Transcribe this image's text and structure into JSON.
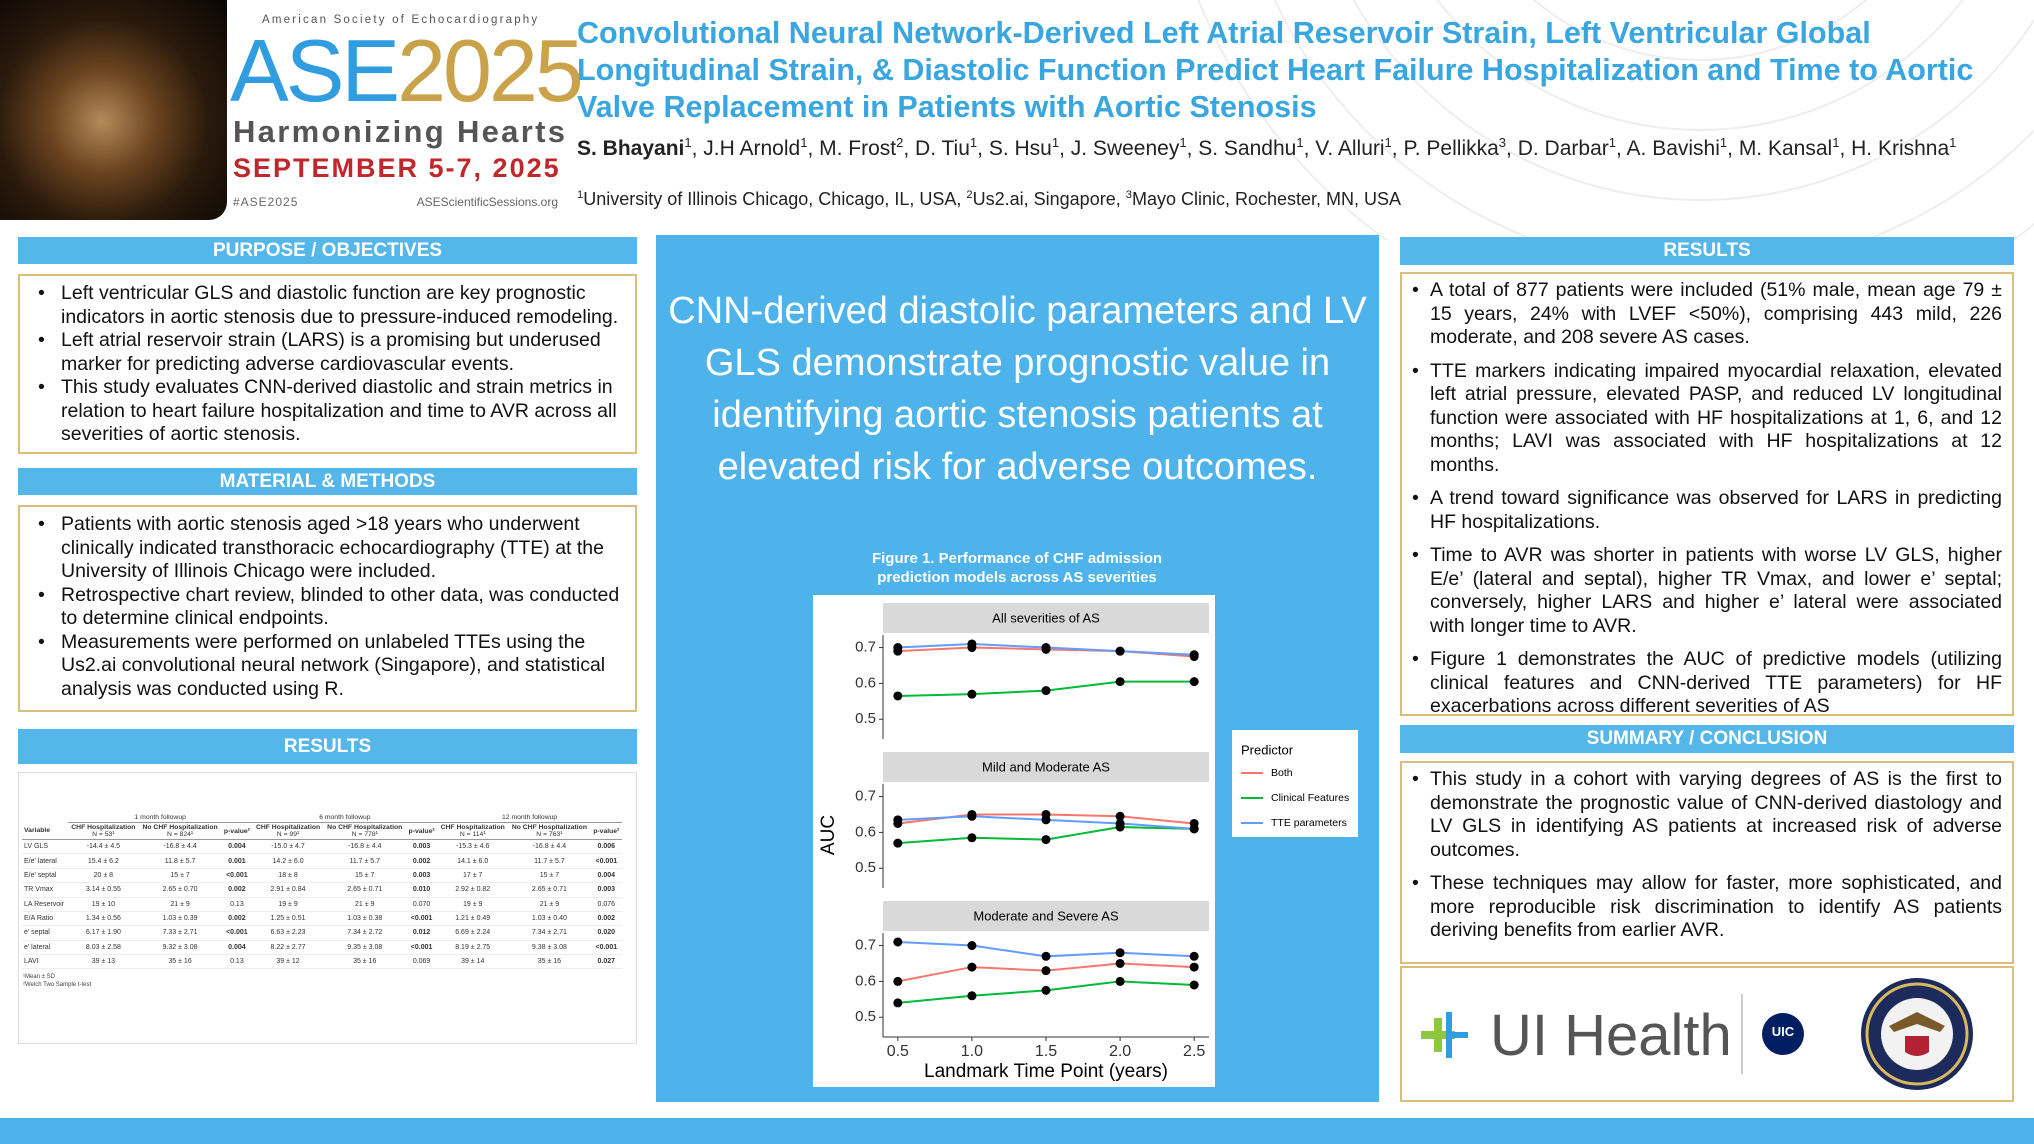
{
  "header": {
    "society": "American Society of Echocardiography",
    "logo_ase": "ASE",
    "logo_year": "2025",
    "tagline": "Harmonizing Hearts",
    "dates": "SEPTEMBER 5-7, 2025",
    "hashtag": "#ASE2025",
    "website": "ASEScientificSessions.org",
    "title": "Convolutional Neural Network-Derived Left Atrial Reservoir Strain, Left Ventricular Global Longitudinal Strain, & Diastolic Function Predict Heart Failure Hospitalization and Time to Aortic Valve Replacement in Patients with Aortic Stenosis",
    "authors": [
      {
        "name": "S. Bhayani",
        "sup": "1"
      },
      {
        "name": "J.H Arnold",
        "sup": "1"
      },
      {
        "name": "M. Frost",
        "sup": "2"
      },
      {
        "name": "D. Tiu",
        "sup": "1"
      },
      {
        "name": "S. Hsu",
        "sup": "1"
      },
      {
        "name": "J. Sweeney",
        "sup": "1"
      },
      {
        "name": "S. Sandhu",
        "sup": "1"
      },
      {
        "name": "V. Alluri",
        "sup": "1"
      },
      {
        "name": "P. Pellikka",
        "sup": "3"
      },
      {
        "name": "D. Darbar",
        "sup": "1"
      },
      {
        "name": "A. Bavishi",
        "sup": "1"
      },
      {
        "name": "M. Kansal",
        "sup": "1"
      },
      {
        "name": "H. Krishna",
        "sup": "1"
      }
    ],
    "affiliations": [
      {
        "sup": "1",
        "text": "University of Illinois Chicago, Chicago, IL, USA"
      },
      {
        "sup": "2",
        "text": "Us2.ai, Singapore"
      },
      {
        "sup": "3",
        "text": "Mayo Clinic, Rochester, MN, USA"
      }
    ]
  },
  "purpose": {
    "heading": "PURPOSE / OBJECTIVES",
    "bullets": [
      "Left ventricular GLS and diastolic function are key prognostic indicators in aortic stenosis due to pressure-induced remodeling.",
      "Left atrial reservoir strain (LARS) is a promising but underused marker for predicting adverse cardiovascular events.",
      "This study evaluates CNN-derived diastolic and strain metrics in relation to heart failure hospitalization and time to AVR across all severities of aortic stenosis."
    ]
  },
  "methods": {
    "heading": "MATERIAL & METHODS",
    "bullets": [
      "Patients with aortic stenosis aged >18 years who underwent clinically indicated transthoracic echocardiography (TTE) at the University of Illinois Chicago were included.",
      "Retrospective chart review, blinded to other data, was conducted to determine clinical endpoints.",
      "Measurements were performed on unlabeled TTEs using the Us2.ai convolutional neural network (Singapore), and statistical analysis was conducted using R."
    ]
  },
  "results_table": {
    "heading": "RESULTS",
    "variable_header": "Variable",
    "groups": [
      {
        "name": "1 month followup",
        "columns": [
          {
            "label": "CHF Hospitalization",
            "n": "N = 53¹"
          },
          {
            "label": "No CHF Hospitalization",
            "n": "N = 824¹"
          },
          {
            "label": "p-value²"
          }
        ]
      },
      {
        "name": "6 month followup",
        "columns": [
          {
            "label": "CHF Hospitalization",
            "n": "N = 99¹"
          },
          {
            "label": "No CHF Hospitalization",
            "n": "N = 778¹"
          },
          {
            "label": "p-value²"
          }
        ]
      },
      {
        "name": "12 month followup",
        "columns": [
          {
            "label": "CHF Hospitalization",
            "n": "N = 114¹"
          },
          {
            "label": "No CHF Hospitalization",
            "n": "N = 763¹"
          },
          {
            "label": "p-value²"
          }
        ]
      }
    ],
    "rows": [
      {
        "variable": "LV GLS",
        "cells": [
          "-14.4 ± 4.5",
          "-16.8 ± 4.4",
          "0.004",
          "-15.0 ± 4.7",
          "-16.8 ± 4.4",
          "0.003",
          "-15.3 ± 4.6",
          "-16.8 ± 4.4",
          "0.006"
        ]
      },
      {
        "variable": "E/e' lateral",
        "cells": [
          "15.4 ± 6.2",
          "11.8 ± 5.7",
          "0.001",
          "14.2 ± 6.0",
          "11.7 ± 5.7",
          "0.002",
          "14.1 ± 6.0",
          "11.7 ± 5.7",
          "<0.001"
        ]
      },
      {
        "variable": "E/e' septal",
        "cells": [
          "20 ± 8",
          "15 ± 7",
          "<0.001",
          "18 ± 8",
          "15 ± 7",
          "0.003",
          "17 ± 7",
          "15 ± 7",
          "0.004"
        ]
      },
      {
        "variable": "TR Vmax",
        "cells": [
          "3.14 ± 0.55",
          "2.65 ± 0.70",
          "0.002",
          "2.91 ± 0.84",
          "2.65 ± 0.71",
          "0.010",
          "2.92 ± 0.82",
          "2.65 ± 0.71",
          "0.003"
        ]
      },
      {
        "variable": "LA Reservoir",
        "cells": [
          "19 ± 10",
          "21 ± 9",
          "0.13",
          "19 ± 9",
          "21 ± 9",
          "0.070",
          "19 ± 9",
          "21 ± 9",
          "0.076"
        ]
      },
      {
        "variable": "E/A Ratio",
        "cells": [
          "1.34 ± 0.56",
          "1.03 ± 0.39",
          "0.002",
          "1.25 ± 0.51",
          "1.03 ± 0.38",
          "<0.001",
          "1.21 ± 0.49",
          "1.03 ± 0.40",
          "0.002"
        ]
      },
      {
        "variable": "e' septal",
        "cells": [
          "6.17 ± 1.90",
          "7.33 ± 2.71",
          "<0.001",
          "6.63 ± 2.23",
          "7.34 ± 2.72",
          "0.012",
          "6.69 ± 2.24",
          "7.34 ± 2.71",
          "0.020"
        ]
      },
      {
        "variable": "e' lateral",
        "cells": [
          "8.03 ± 2.58",
          "9.32 ± 3.08",
          "0.004",
          "8.22 ± 2.77",
          "9.35 ± 3.08",
          "<0.001",
          "8.19 ± 2.75",
          "9.38 ± 3.08",
          "<0.001"
        ]
      },
      {
        "variable": "LAVI",
        "cells": [
          "39 ± 13",
          "35 ± 16",
          "0.13",
          "39 ± 12",
          "35 ± 16",
          "0.069",
          "39 ± 14",
          "35 ± 16",
          "0.027"
        ]
      }
    ],
    "footnotes": [
      "¹Mean ± SD",
      "²Welch Two Sample t-test"
    ]
  },
  "key_message": "CNN-derived diastolic parameters and LV GLS demonstrate prognostic value in identifying aortic stenosis patients at elevated risk for adverse outcomes.",
  "chart_data": {
    "type": "line",
    "title": "Figure 1. Performance of CHF admission prediction models across AS severities",
    "xlabel": "Landmark Time Point (years)",
    "ylabel": "AUC",
    "legend_title": "Predictor",
    "x": [
      0.5,
      1.0,
      1.5,
      2.0,
      2.5
    ],
    "xlim": [
      0.4,
      2.6
    ],
    "xticks": [
      0.5,
      {
        "value": 1.0,
        "label": "1.0"
      },
      1.5,
      {
        "value": 2.0,
        "label": "2.0"
      },
      2.5
    ],
    "series": [
      {
        "name": "Both",
        "color": "#f8766d"
      },
      {
        "name": "Clinical Features",
        "color": "#00ba38"
      },
      {
        "name": "TTE parameters",
        "color": "#619cff"
      }
    ],
    "panels": [
      {
        "title": "All severities of AS",
        "ylim": [
          0.445,
          0.735
        ],
        "yticks": [
          0.5,
          0.6,
          0.7
        ],
        "values": [
          [
            0.69,
            0.7,
            0.695,
            0.69,
            0.675
          ],
          [
            0.565,
            0.57,
            0.58,
            0.605,
            0.605
          ],
          [
            0.7,
            0.71,
            0.7,
            0.69,
            0.68
          ]
        ]
      },
      {
        "title": "Mild and Moderate AS",
        "ylim": [
          0.445,
          0.735
        ],
        "yticks": [
          0.5,
          0.6,
          0.7
        ],
        "values": [
          [
            0.625,
            0.65,
            0.65,
            0.645,
            0.625
          ],
          [
            0.57,
            0.585,
            0.58,
            0.615,
            0.61
          ],
          [
            0.635,
            0.645,
            0.635,
            0.625,
            0.61
          ]
        ]
      },
      {
        "title": "Moderate and Severe AS",
        "ylim": [
          0.445,
          0.735
        ],
        "yticks": [
          0.5,
          0.6,
          0.7
        ],
        "values": [
          [
            0.6,
            0.64,
            0.63,
            0.65,
            0.64
          ],
          [
            0.54,
            0.56,
            0.575,
            0.6,
            0.59
          ],
          [
            0.71,
            0.7,
            0.67,
            0.68,
            0.67
          ]
        ]
      }
    ]
  },
  "results": {
    "heading": "RESULTS",
    "bullets": [
      "A total of 877 patients were included (51% male, mean age 79 ± 15 years, 24% with LVEF <50%), comprising 443 mild, 226 moderate, and 208 severe AS cases.",
      "TTE markers indicating impaired myocardial relaxation, elevated left atrial pressure, elevated PASP, and reduced LV longitudinal function were associated with HF hospitalizations at 1, 6, and 12 months; LAVI was associated with HF hospitalizations at 12 months.",
      "A trend toward significance was observed for LARS in predicting HF hospitalizations.",
      "Time to AVR was shorter in patients with worse LV GLS, higher E/e’ (lateral and septal), higher TR Vmax, and lower e’ septal; conversely, higher LARS and higher e’ lateral were associated with longer time to AVR.",
      "Figure 1 demonstrates the AUC of predictive models (utilizing clinical features and CNN-derived TTE parameters) for HF exacerbations across different severities of AS"
    ]
  },
  "conclusion": {
    "heading": "SUMMARY / CONCLUSION",
    "bullets": [
      "This study in a cohort with varying degrees of AS is the first to demonstrate the prognostic value of CNN-derived diastology and LV GLS in identifying AS patients at increased risk of adverse outcomes.",
      "These techniques may allow for faster, more sophisticated, and more reproducible risk discrimination to identify AS patients deriving benefits from earlier AVR."
    ]
  },
  "logos": {
    "ui_health": "UI Health",
    "uic": "UIC"
  }
}
